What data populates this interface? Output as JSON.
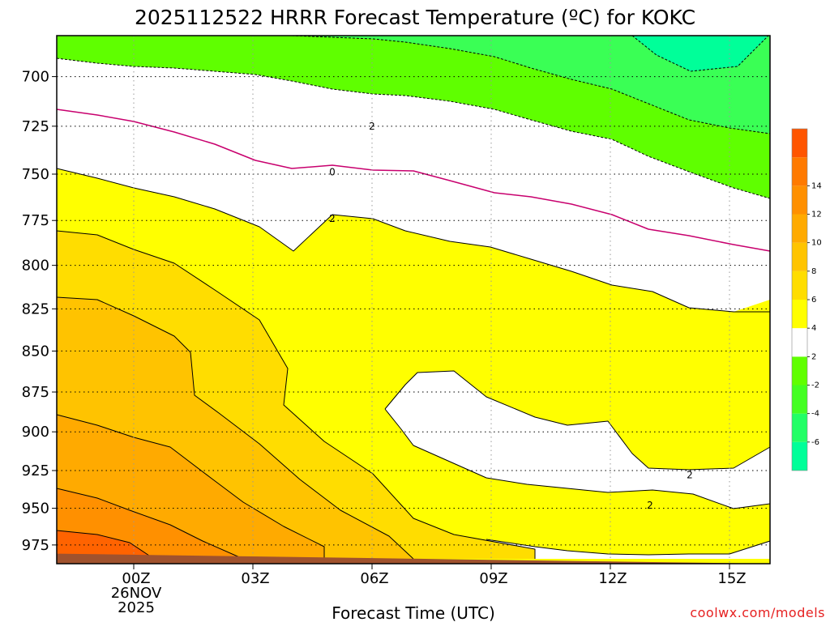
{
  "chart_data": {
    "type": "heatmap",
    "title": "2025112522 HRRR Forecast Temperature (ºC) for KOKC",
    "xlabel": "Forecast Time (UTC)",
    "ylabel": "",
    "y_scale": "log-pressure",
    "ylim": [
      680,
      988
    ],
    "xlim_hours": [
      -2,
      16
    ],
    "x_ticks": [
      {
        "hour": 0,
        "label": "00Z",
        "date": "26NOV",
        "year": "2025"
      },
      {
        "hour": 3,
        "label": "03Z"
      },
      {
        "hour": 6,
        "label": "06Z"
      },
      {
        "hour": 9,
        "label": "09Z"
      },
      {
        "hour": 12,
        "label": "12Z"
      },
      {
        "hour": 15,
        "label": "15Z"
      }
    ],
    "y_ticks": [
      700,
      725,
      750,
      775,
      800,
      825,
      850,
      875,
      900,
      925,
      950,
      975
    ],
    "grid": true,
    "legend": "right",
    "colorbar": {
      "levels": [
        -8,
        -6,
        -4,
        -2,
        2,
        4,
        6,
        8,
        10,
        12,
        14,
        16
      ],
      "labels": [
        "-6",
        "-4",
        "-2",
        "2",
        "4",
        "6",
        "8",
        "10",
        "12",
        "14"
      ],
      "colors": [
        "#00ff99",
        "#22ff66",
        "#44ff22",
        "#60ff00",
        "#ffffff",
        "#ffff00",
        "#ffdd00",
        "#ffc400",
        "#ffaa00",
        "#ff9000",
        "#ff7a00",
        "#ff5500"
      ]
    },
    "contour_labels": [
      {
        "text": "2",
        "hour": 6,
        "p": 725
      },
      {
        "text": "0",
        "hour": 5,
        "p": 749
      },
      {
        "text": "2",
        "hour": 5,
        "p": 774
      },
      {
        "text": "2",
        "hour": 14,
        "p": 928
      },
      {
        "text": "2",
        "hour": 13,
        "p": 948
      }
    ],
    "surface_color": "#a0522d",
    "surface_pressure": [
      981,
      982,
      983,
      984,
      985,
      986,
      987,
      988
    ]
  },
  "credit": "coolwx.com/models"
}
